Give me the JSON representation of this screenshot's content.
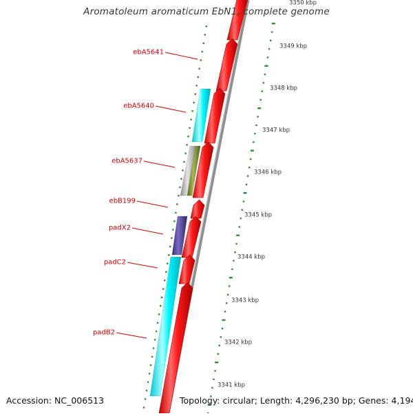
{
  "title": "Aromatoleum aromaticum EbN1, complete genome",
  "footer": {
    "accession": "Accession: NC_006513",
    "topology": "Topology: circular; Length: 4,296,230 bp; Genes: 4,194"
  },
  "colors": {
    "forward_genes": "#ff0000",
    "reverse_cds_cyan": "#00ffff",
    "reverse_cds_purple": "#4b3d9a",
    "reverse_cds_olive": "#7a8a2a",
    "reverse_cds_grey": "#b4b4b4",
    "gene_label": "#cc0000",
    "tick": "#2f8f2f",
    "backbone": "#9a9a9a"
  },
  "scale_labels": [
    "3350 kbp",
    "3349 kbp",
    "3348 kbp",
    "3347 kbp",
    "3346 kbp",
    "3345 kbp",
    "3344 kbp",
    "3343 kbp",
    "3342 kbp",
    "3341 kbp"
  ],
  "gene_labels": [
    "ebA5641",
    "ebA5640",
    "ebA5637",
    "ebB199",
    "padX2",
    "padC2",
    "padB2"
  ]
}
